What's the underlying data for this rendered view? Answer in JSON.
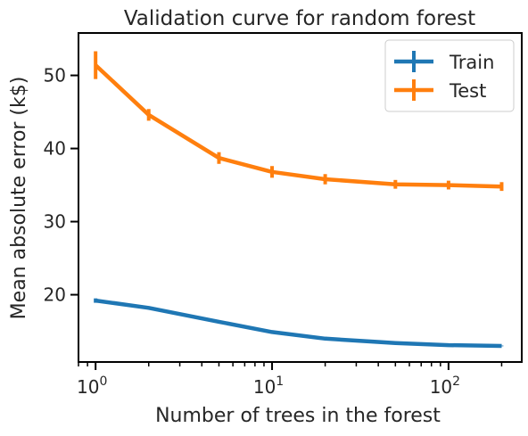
{
  "chart_data": {
    "type": "line",
    "title": "Validation curve for random forest",
    "xlabel": "Number of trees in the forest",
    "ylabel": "Mean absolute error (k$)",
    "xscale": "log",
    "xlim": [
      0.8,
      260
    ],
    "ylim": [
      10.8,
      55.8
    ],
    "x_ticks": [
      1,
      10,
      100
    ],
    "x_tick_labels": [
      {
        "base": "10",
        "exp": "0"
      },
      {
        "base": "10",
        "exp": "1"
      },
      {
        "base": "10",
        "exp": "2"
      }
    ],
    "y_ticks": [
      20,
      30,
      40,
      50
    ],
    "grid": false,
    "legend_position": "top-right",
    "x": [
      1,
      2,
      5,
      10,
      20,
      50,
      100,
      200
    ],
    "series": [
      {
        "name": "Train",
        "color": "#1f77b4",
        "values": [
          19.2,
          18.2,
          16.3,
          14.9,
          14.0,
          13.4,
          13.1,
          13.0
        ],
        "errors": [
          0.3,
          0.1,
          0.1,
          0.1,
          0.1,
          0.1,
          0.05,
          0.05
        ]
      },
      {
        "name": "Test",
        "color": "#ff7f0e",
        "values": [
          51.4,
          44.6,
          38.7,
          36.8,
          35.8,
          35.1,
          35.0,
          34.8
        ],
        "errors": [
          1.9,
          0.8,
          0.8,
          0.8,
          0.7,
          0.6,
          0.6,
          0.6
        ]
      }
    ]
  }
}
